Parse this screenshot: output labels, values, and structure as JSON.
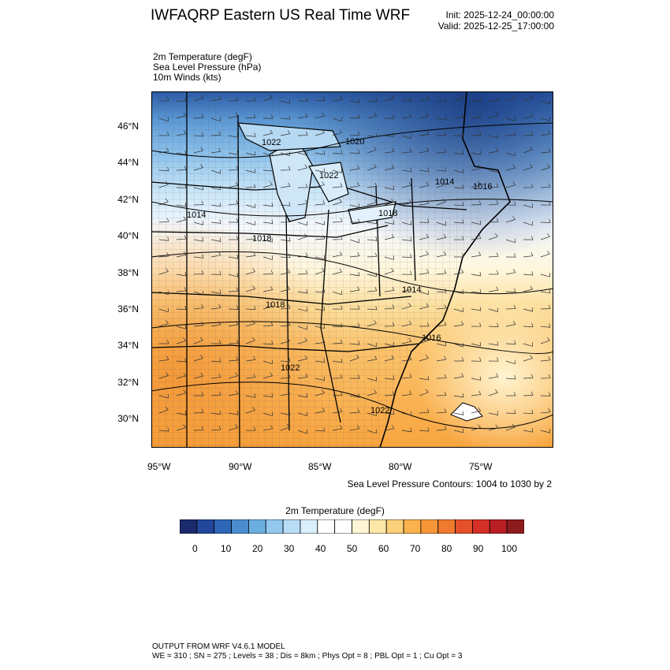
{
  "title": "IWFAQRP Eastern US Real Time WRF",
  "init": "Init: 2025-12-24_00:00:00",
  "valid": "Valid: 2025-12-25_17:00:00",
  "fields": [
    "2m Temperature   (degF)",
    "Sea Level Pressure   (hPa)",
    "10m Winds   (kts)"
  ],
  "lat_labels": [
    "46°N",
    "44°N",
    "42°N",
    "40°N",
    "38°N",
    "36°N",
    "34°N",
    "32°N",
    "30°N"
  ],
  "lon_labels": [
    "95°W",
    "90°W",
    "85°W",
    "80°W",
    "75°W"
  ],
  "contour_note": "Sea Level Pressure Contours: 1004 to 1030 by 2",
  "isobar_labels": [
    "1022",
    "1020",
    "1022",
    "1014",
    "1016",
    "1014",
    "1018",
    "1018",
    "1018",
    "1014",
    "1016",
    "1022",
    "1022"
  ],
  "colorbar": {
    "title": "2m Temperature  (degF)",
    "tick_labels": [
      "0",
      "10",
      "20",
      "30",
      "40",
      "50",
      "60",
      "70",
      "80",
      "90",
      "100"
    ],
    "colors": [
      "#1a2a6c",
      "#22479a",
      "#2e67b8",
      "#4a8ccf",
      "#6aaee0",
      "#93c9ef",
      "#b9ddf7",
      "#daeffc",
      "#ffffff",
      "#ffffff",
      "#fff5d6",
      "#fde7a6",
      "#fcd079",
      "#fbb24c",
      "#f89738",
      "#f07a2e",
      "#e4512a",
      "#d43027",
      "#b81f24",
      "#8e1b1c"
    ]
  },
  "footer": {
    "line1": "OUTPUT FROM WRF V4.6.1 MODEL",
    "line2": "WE = 310 ; SN = 275 ; Levels = 38 ; Dis = 8km ; Phys Opt = 8 ; PBL Opt = 1 ; Cu Opt = 3"
  }
}
